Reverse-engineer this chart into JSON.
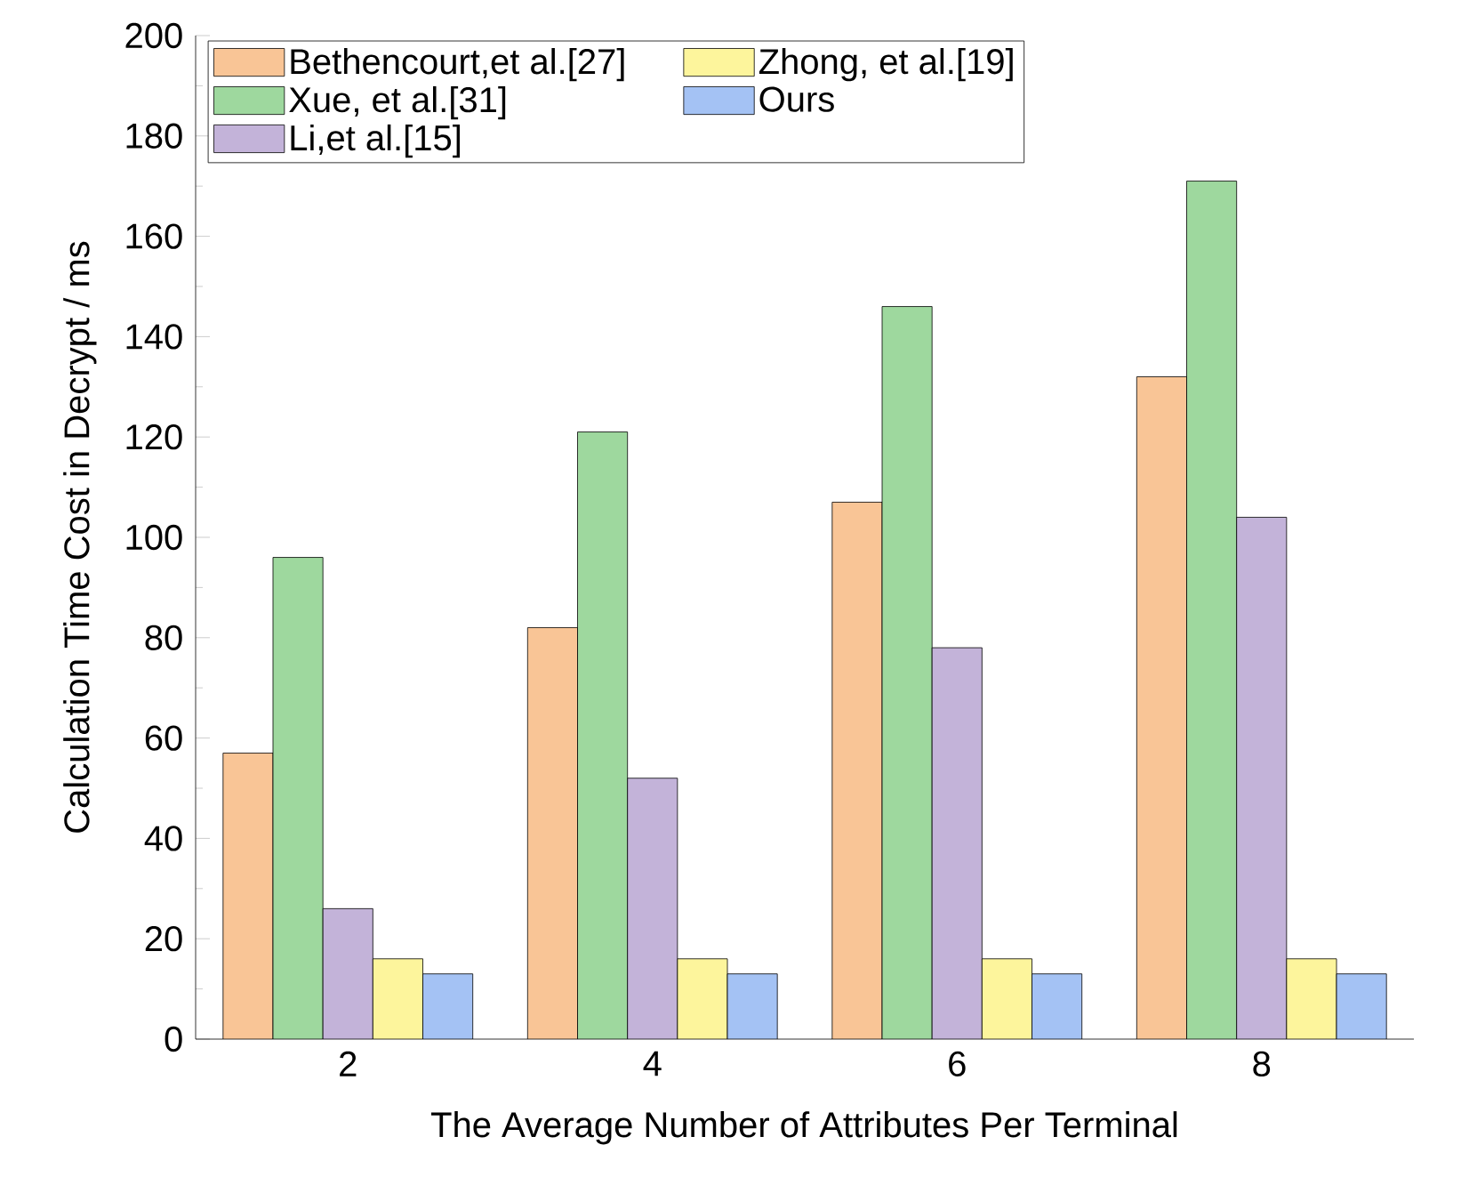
{
  "chart_data": {
    "type": "bar",
    "xlabel": "The Average Number of Attributes Per Terminal",
    "ylabel": "Calculation Time Cost in Decrypt / ms",
    "categories": [
      "2",
      "4",
      "6",
      "8"
    ],
    "ylim": [
      0,
      200
    ],
    "yticks": [
      0,
      20,
      40,
      60,
      80,
      100,
      120,
      140,
      160,
      180,
      200
    ],
    "legend": "top",
    "series": [
      {
        "name": "Bethencourt,et al.[27]",
        "color": "#f9c596",
        "values": [
          57,
          82,
          107,
          132
        ]
      },
      {
        "name": "Xue, et al.[31]",
        "color": "#9ed89e",
        "values": [
          96,
          121,
          146,
          171
        ]
      },
      {
        "name": "Li,et al.[15]",
        "color": "#c3b3d9",
        "values": [
          26,
          52,
          78,
          104
        ]
      },
      {
        "name": "Zhong, et al.[19]",
        "color": "#fdf59c",
        "values": [
          16,
          16,
          16,
          16
        ]
      },
      {
        "name": "Ours",
        "color": "#a4c2f4",
        "values": [
          13,
          13,
          13,
          13
        ]
      }
    ]
  }
}
